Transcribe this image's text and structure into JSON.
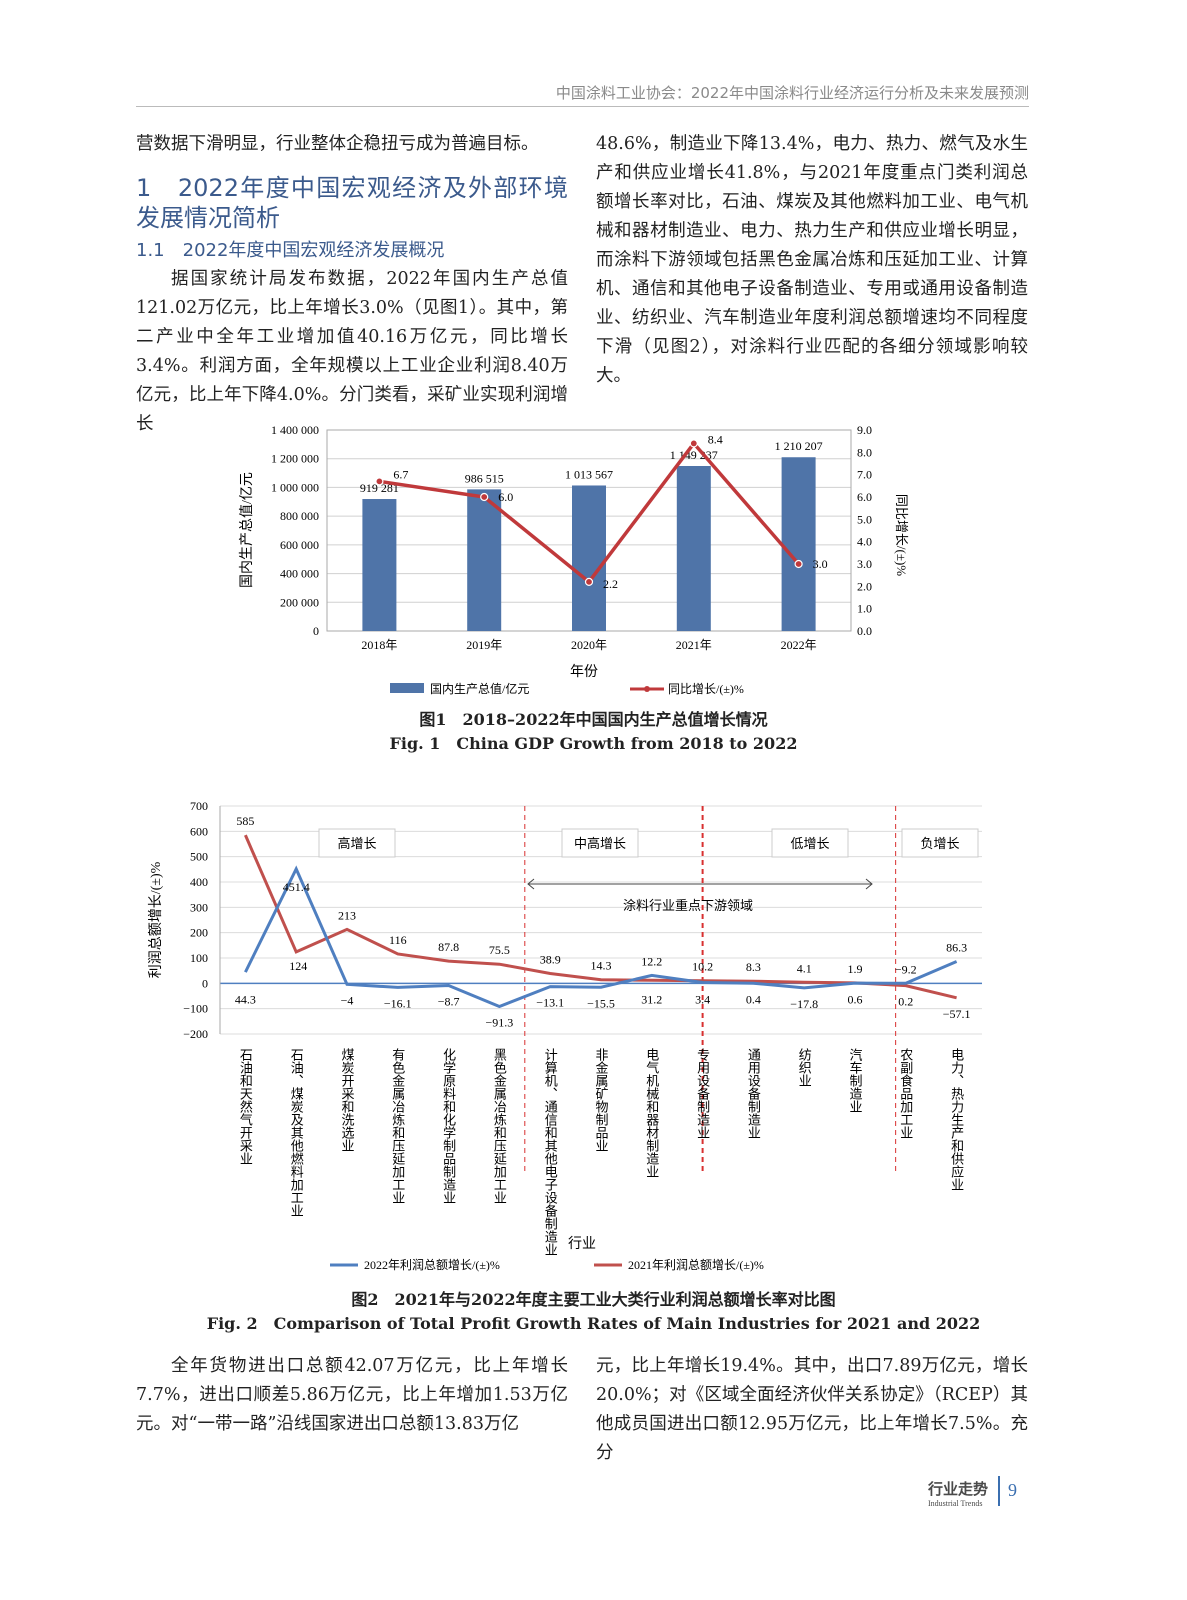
{
  "header": {
    "running_title": "中国涂料工业协会：2022年中国涂料行业经济运行分析及未来发展预测"
  },
  "left_col": {
    "p0": "营数据下滑明显，行业整体企稳扭亏成为普遍目标。",
    "h1": "1　2022年度中国宏观经济及外部环境发展情况简析",
    "h2": "1.1　2022年度中国宏观经济发展概况",
    "p1": "据国家统计局发布数据，2022年国内生产总值121.02万亿元，比上年增长3.0%（见图1）。其中，第二产业中全年工业增加值40.16万亿元，同比增长3.4%。利润方面，全年规模以上工业企业利润8.40万亿元，比上年下降4.0%。分门类看，采矿业实现利润增长"
  },
  "right_col": {
    "p1": "48.6%，制造业下降13.4%，电力、热力、燃气及水生产和供应业增长41.8%，与2021年度重点门类利润总额增长率对比，石油、煤炭及其他燃料加工业、电气机械和器材制造业、电力、热力生产和供应业增长明显，而涂料下游领域包括黑色金属冶炼和压延加工业、计算机、通信和其他电子设备制造业、专用或通用设备制造业、纺织业、汽车制造业年度利润总额增速均不同程度下滑（见图2），对涂料行业匹配的各细分领域影响较大。"
  },
  "bottom": {
    "left": "全年货物进出口总额42.07万亿元，比上年增长7.7%，进出口顺差5.86万亿元，比上年增加1.53万亿元。对“一带一路”沿线国家进出口总额13.83万亿",
    "right": "元，比上年增长19.4%。其中，出口7.89万亿元，增长20.0%；对《区域全面经济伙伴关系协定》（RCEP）其他成员国进出口额12.95万亿元，比上年增长7.5%。充分"
  },
  "fig1": {
    "caption_cn": "图1　2018–2022年中国国内生产总值增长情况",
    "caption_en": "Fig. 1　China GDP Growth from 2018 to 2022"
  },
  "fig2": {
    "caption_cn": "图2　2021年与2022年度主要工业大类行业利润总额增长率对比图",
    "caption_en": "Fig. 2　Comparison of Total Profit Growth Rates of Main Industries for 2021 and 2022"
  },
  "footer": {
    "section_cn": "行业走势",
    "section_en": "Industrial Trends",
    "page": "9"
  },
  "chart_data": [
    {
      "type": "bar+line",
      "categories": [
        "2018年",
        "2019年",
        "2020年",
        "2021年",
        "2022年"
      ],
      "xlabel": "年份",
      "ylabel": "国内生产总值/亿元",
      "y2label": "同比增长/(±)%",
      "ylim": [
        0,
        1400000
      ],
      "y_ticks": [
        "0",
        "200 000",
        "400 000",
        "600 000",
        "800 000",
        "1 000 000",
        "1 200 000",
        "1 400 000"
      ],
      "y2lim": [
        0,
        9
      ],
      "y2_ticks": [
        "0.0",
        "1.0",
        "2.0",
        "3.0",
        "4.0",
        "5.0",
        "6.0",
        "7.0",
        "8.0",
        "9.0"
      ],
      "grid": true,
      "legend": "bottom",
      "series": [
        {
          "name": "国内生产总值/亿元",
          "type": "bar",
          "axis": "left",
          "color": "#4f74a8",
          "values": [
            919281,
            986515,
            1013567,
            1149237,
            1210207
          ],
          "labels": [
            "919 281",
            "986 515",
            "1 013 567",
            "1 149 237",
            "1 210 207"
          ]
        },
        {
          "name": "同比增长/(±)%",
          "type": "line",
          "axis": "right",
          "color": "#c0393b",
          "values": [
            6.7,
            6.0,
            2.2,
            8.4,
            3.0
          ],
          "labels": [
            "6.7",
            "6.0",
            "2.2",
            "8.4",
            "3.0"
          ]
        }
      ]
    },
    {
      "type": "line",
      "categories": [
        "石油和天然气开采业",
        "石油、煤炭及其他燃料加工业",
        "煤炭开采和洗选业",
        "有色金属冶炼和压延加工业",
        "化学原料和化学制品制造业",
        "黑色金属冶炼和压延加工业",
        "计算机、通信和其他电子设备制造业",
        "非金属矿物制品业",
        "电气机械和器材制造业",
        "专用设备制造业",
        "通用设备制造业",
        "纺织业",
        "汽车制造业",
        "农副食品加工业",
        "电力、热力生产和供应业"
      ],
      "xlabel": "行业",
      "ylabel": "利润总额增长/(±)%",
      "ylim": [
        -200,
        700
      ],
      "y_ticks": [
        "−200",
        "−100",
        "0",
        "100",
        "200",
        "300",
        "400",
        "500",
        "600",
        "700"
      ],
      "grid": true,
      "legend": "bottom",
      "series": [
        {
          "name": "2022年利润总额增长/(±)%",
          "color": "#4f7fc0",
          "values": [
            44.3,
            451.4,
            -4,
            -16.1,
            -8.7,
            -91.3,
            -13.1,
            -15.5,
            31.2,
            3.4,
            0.4,
            -17.8,
            0.6,
            0.2,
            86.3
          ],
          "labels": [
            "44.3",
            "451.4",
            "−4",
            "−16.1",
            "−8.7",
            "−91.3",
            "−13.1",
            "−15.5",
            "31.2",
            "3.4",
            "0.4",
            "−17.8",
            "0.6",
            "0.2",
            "86.3"
          ]
        },
        {
          "name": "2021年利润总额增长/(±)%",
          "color": "#c0504d",
          "values": [
            585,
            124,
            213,
            116,
            87.8,
            75.5,
            38.9,
            14.3,
            12.2,
            10.2,
            8.3,
            4.1,
            1.9,
            -9.2,
            -57.1
          ],
          "labels": [
            "585",
            "124",
            "213",
            "116",
            "87.8",
            "75.5",
            "38.9",
            "14.3",
            "12.2",
            "10.2",
            "8.3",
            "4.1",
            "1.9",
            "−9.2",
            "−57.1"
          ]
        }
      ],
      "annotations": {
        "groups": [
          "高增长",
          "中高增长",
          "低增长",
          "负增长"
        ],
        "range_label": "涂料行业重点下游领域"
      }
    }
  ]
}
